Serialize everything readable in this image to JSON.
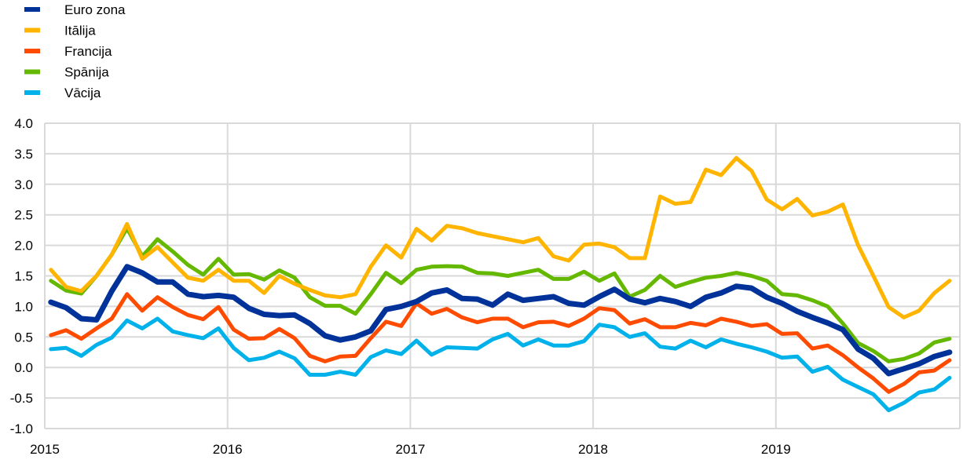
{
  "chart_data": {
    "type": "line",
    "title": "",
    "xlabel": "",
    "ylabel": "",
    "ylim": [
      -1.0,
      4.0
    ],
    "yticks": [
      "4.0",
      "3.5",
      "3.0",
      "2.5",
      "2.0",
      "1.5",
      "1.0",
      "0.5",
      "0.0",
      "-0.5",
      "-1.0"
    ],
    "xticks": [
      "2015",
      "2016",
      "2017",
      "2018",
      "2019"
    ],
    "x_start": "2015-01",
    "frequency": "monthly",
    "grid": true,
    "legend_position": "top-left",
    "series": [
      {
        "name": "Euro zona",
        "color": "#003299",
        "values": [
          1.07,
          0.98,
          0.8,
          0.78,
          1.25,
          1.65,
          1.55,
          1.4,
          1.4,
          1.2,
          1.16,
          1.18,
          1.15,
          0.97,
          0.87,
          0.85,
          0.86,
          0.72,
          0.52,
          0.45,
          0.5,
          0.6,
          0.95,
          1.0,
          1.08,
          1.22,
          1.27,
          1.13,
          1.12,
          1.02,
          1.2,
          1.1,
          1.13,
          1.16,
          1.05,
          1.02,
          1.16,
          1.28,
          1.12,
          1.06,
          1.13,
          1.08,
          1.0,
          1.15,
          1.22,
          1.33,
          1.3,
          1.15,
          1.05,
          0.92,
          0.82,
          0.73,
          0.62,
          0.3,
          0.15,
          -0.1,
          -0.02,
          0.06,
          0.18,
          0.25
        ]
      },
      {
        "name": "Itālija",
        "color": "#FFB400",
        "values": [
          1.6,
          1.32,
          1.25,
          1.5,
          1.85,
          2.35,
          1.78,
          1.97,
          1.72,
          1.47,
          1.42,
          1.6,
          1.42,
          1.42,
          1.22,
          1.5,
          1.37,
          1.27,
          1.18,
          1.15,
          1.2,
          1.65,
          2.0,
          1.8,
          2.27,
          2.08,
          2.32,
          2.28,
          2.2,
          2.15,
          2.1,
          2.05,
          2.12,
          1.82,
          1.75,
          2.01,
          2.03,
          1.97,
          1.79,
          1.79,
          2.8,
          2.68,
          2.71,
          3.24,
          3.15,
          3.43,
          3.22,
          2.75,
          2.59,
          2.76,
          2.49,
          2.55,
          2.67,
          2.0,
          1.5,
          0.99,
          0.82,
          0.93,
          1.22,
          1.42
        ]
      },
      {
        "name": "Francija",
        "color": "#FF4B00",
        "values": [
          0.53,
          0.61,
          0.47,
          0.64,
          0.8,
          1.2,
          0.93,
          1.15,
          0.99,
          0.86,
          0.79,
          0.99,
          0.62,
          0.47,
          0.48,
          0.63,
          0.48,
          0.19,
          0.1,
          0.18,
          0.19,
          0.48,
          0.75,
          0.68,
          1.05,
          0.88,
          0.96,
          0.82,
          0.74,
          0.8,
          0.8,
          0.66,
          0.74,
          0.75,
          0.68,
          0.8,
          0.97,
          0.94,
          0.72,
          0.79,
          0.66,
          0.66,
          0.73,
          0.69,
          0.8,
          0.75,
          0.68,
          0.71,
          0.55,
          0.56,
          0.31,
          0.36,
          0.2,
          0.0,
          -0.18,
          -0.4,
          -0.27,
          -0.08,
          -0.05,
          0.12
        ]
      },
      {
        "name": "Spānija",
        "color": "#65B800",
        "values": [
          1.42,
          1.26,
          1.21,
          1.5,
          1.85,
          2.28,
          1.82,
          2.1,
          1.9,
          1.68,
          1.52,
          1.78,
          1.52,
          1.53,
          1.44,
          1.59,
          1.47,
          1.15,
          1.01,
          1.01,
          0.88,
          1.2,
          1.55,
          1.38,
          1.6,
          1.65,
          1.66,
          1.65,
          1.55,
          1.54,
          1.5,
          1.55,
          1.6,
          1.45,
          1.45,
          1.57,
          1.42,
          1.54,
          1.16,
          1.27,
          1.5,
          1.32,
          1.4,
          1.47,
          1.5,
          1.55,
          1.5,
          1.42,
          1.2,
          1.18,
          1.1,
          1.0,
          0.72,
          0.4,
          0.27,
          0.1,
          0.14,
          0.23,
          0.41,
          0.47
        ]
      },
      {
        "name": "Vācija",
        "color": "#00B1EA",
        "values": [
          0.3,
          0.32,
          0.19,
          0.37,
          0.49,
          0.77,
          0.64,
          0.8,
          0.59,
          0.53,
          0.48,
          0.64,
          0.32,
          0.12,
          0.16,
          0.26,
          0.15,
          -0.12,
          -0.12,
          -0.07,
          -0.12,
          0.17,
          0.28,
          0.22,
          0.44,
          0.21,
          0.33,
          0.32,
          0.31,
          0.46,
          0.55,
          0.36,
          0.46,
          0.36,
          0.36,
          0.43,
          0.7,
          0.66,
          0.5,
          0.56,
          0.34,
          0.31,
          0.44,
          0.33,
          0.46,
          0.39,
          0.33,
          0.26,
          0.16,
          0.18,
          -0.07,
          0.01,
          -0.2,
          -0.32,
          -0.44,
          -0.7,
          -0.58,
          -0.41,
          -0.36,
          -0.17
        ]
      }
    ]
  }
}
